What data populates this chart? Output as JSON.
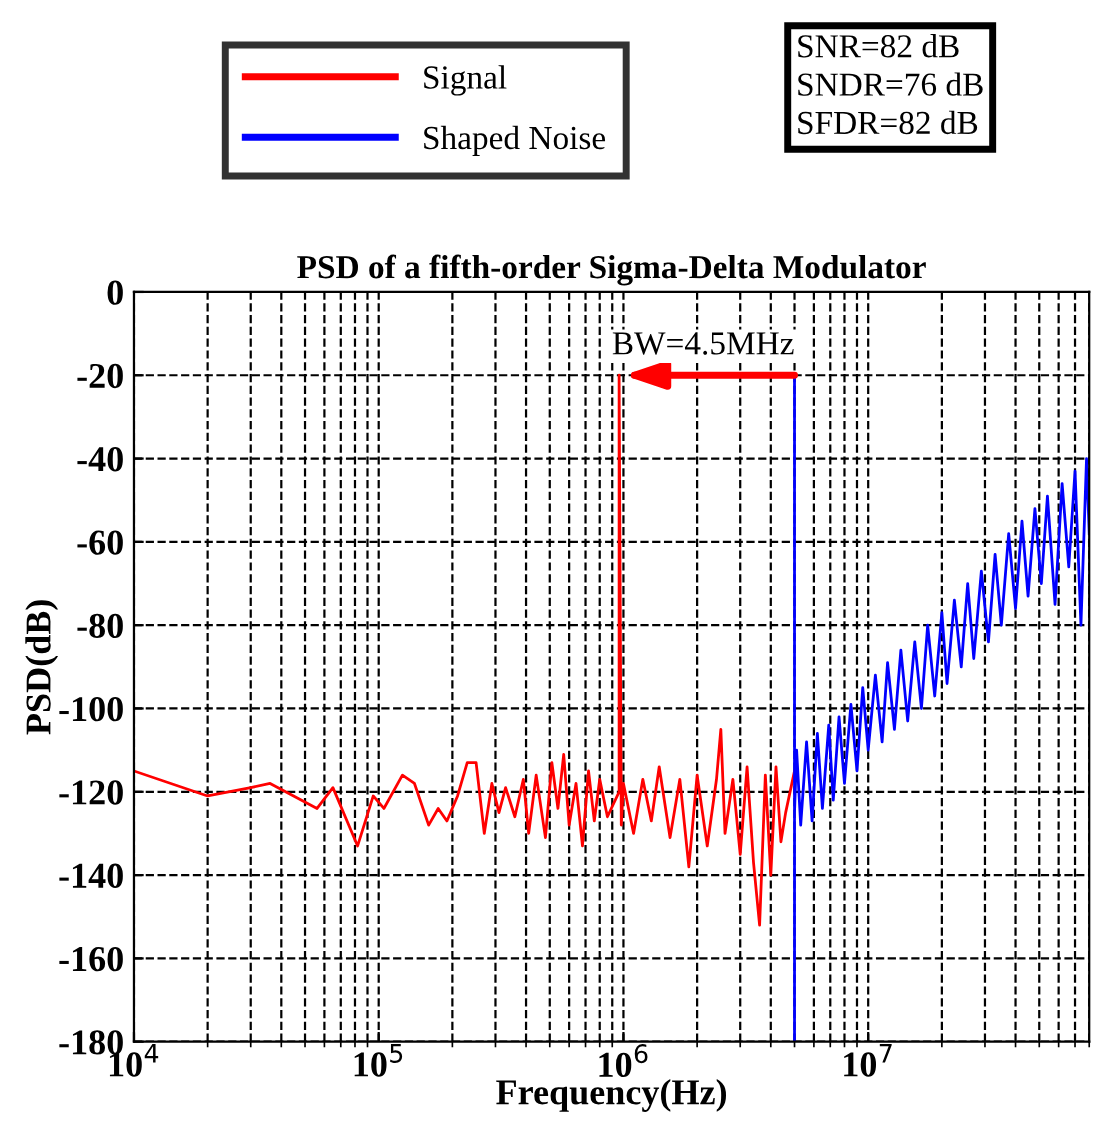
{
  "chart_data": {
    "type": "line",
    "title": "PSD of a fifth-order Sigma-Delta Modulator",
    "xlabel": "Frequency(Hz)",
    "ylabel": "PSD(dB)",
    "log": "x",
    "xlim": [
      10000,
      80000000
    ],
    "ylim": [
      -180,
      0
    ],
    "xticks": [
      {
        "value": 10000,
        "label": "10$^{4}$"
      },
      {
        "value": 100000,
        "label": "10$^{5}$"
      },
      {
        "value": 1000000,
        "label": "10$^{6}$"
      },
      {
        "value": 10000000,
        "label": "10$^{7}$"
      }
    ],
    "yticks": [
      0,
      -20,
      -40,
      -60,
      -80,
      -100,
      -120,
      -140,
      -160,
      -180
    ],
    "grid": true,
    "legend": "top",
    "line_style": "solid",
    "annotations": [
      {
        "text": "BW=4.5MHz",
        "x": 1000000,
        "y": -20
      },
      "SNR=82 dB",
      "SNDR=76 dB",
      "SFDR=82 dB"
    ],
    "series": [
      {
        "name": "Signal",
        "color": "#ff0000",
        "x": [
          10000,
          20000,
          30000,
          36000,
          56000,
          65000,
          82000,
          95000,
          105000,
          125000,
          140000,
          160000,
          175000,
          190000,
          210000,
          230000,
          250000,
          270000,
          290000,
          310000,
          330000,
          360000,
          390000,
          410000,
          440000,
          480000,
          510000,
          540000,
          570000,
          600000,
          640000,
          680000,
          720000,
          760000,
          800000,
          860000,
          960000,
          960000,
          980000,
          1000000,
          1100000,
          1200000,
          1300000,
          1400000,
          1550000,
          1700000,
          1850000,
          2000000,
          2200000,
          2400000,
          2500000,
          2600000,
          2800000,
          3000000,
          3200000,
          3400000,
          3600000,
          3800000,
          4000000,
          4200000,
          4400000,
          4600000,
          5000000
        ],
        "values": [
          -115,
          -121,
          -119,
          -118,
          -124,
          -119,
          -133,
          -121,
          -124,
          -116,
          -118,
          -128,
          -124,
          -127,
          -121,
          -113,
          -113,
          -130,
          -118,
          -125,
          -119,
          -126,
          -117,
          -130,
          -116,
          -131,
          -113,
          -124,
          -111,
          -128,
          -118,
          -133,
          -115,
          -127,
          -117,
          -126,
          -120,
          -20,
          -128,
          -118,
          -130,
          -117,
          -127,
          -114,
          -131,
          -117,
          -138,
          -116,
          -133,
          -117,
          -105,
          -130,
          -117,
          -135,
          -114,
          -137,
          -152,
          -116,
          -140,
          -114,
          -132,
          -125,
          -115
        ]
      },
      {
        "name": "Shaped Noise",
        "color": "#0000ff",
        "x": [
          5000000,
          5000000,
          5000000,
          5100000,
          5300000,
          5600000,
          5900000,
          6200000,
          6500000,
          6900000,
          7200000,
          7600000,
          8000000,
          8500000,
          9000000,
          9500000,
          10000000,
          10700000,
          11400000,
          12000000,
          12800000,
          13600000,
          14500000,
          15500000,
          16500000,
          17500000,
          18700000,
          20000000,
          21000000,
          22500000,
          24000000,
          25500000,
          27000000,
          29000000,
          31000000,
          33000000,
          35000000,
          37500000,
          40000000,
          42500000,
          45000000,
          48000000,
          51000000,
          54000000,
          58000000,
          62000000,
          66000000,
          70000000,
          74000000,
          78000000,
          80000000
        ],
        "values": [
          -180,
          -20,
          -125,
          -110,
          -128,
          -108,
          -127,
          -106,
          -124,
          -104,
          -122,
          -102,
          -118,
          -99,
          -115,
          -95,
          -110,
          -92,
          -108,
          -89,
          -105,
          -86,
          -103,
          -84,
          -100,
          -80,
          -97,
          -77,
          -94,
          -74,
          -90,
          -70,
          -88,
          -67,
          -84,
          -63,
          -80,
          -58,
          -76,
          -55,
          -73,
          -52,
          -70,
          -49,
          -75,
          -46,
          -66,
          -43,
          -80,
          -40,
          -58
        ]
      }
    ]
  }
}
